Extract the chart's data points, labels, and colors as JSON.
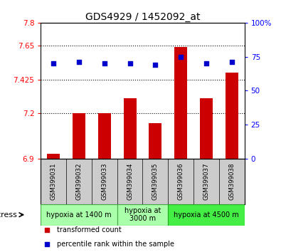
{
  "title": "GDS4929 / 1452092_at",
  "samples": [
    "GSM399031",
    "GSM399032",
    "GSM399033",
    "GSM399034",
    "GSM399035",
    "GSM399036",
    "GSM399037",
    "GSM399038"
  ],
  "bar_values": [
    6.935,
    7.2,
    7.2,
    7.3,
    7.135,
    7.64,
    7.3,
    7.47
  ],
  "dot_values": [
    70,
    71,
    70,
    70,
    69,
    75,
    70,
    71
  ],
  "ylim_left": [
    6.9,
    7.8
  ],
  "ylim_right": [
    0,
    100
  ],
  "yticks_left": [
    6.9,
    7.2,
    7.425,
    7.65,
    7.8
  ],
  "ytick_labels_left": [
    "6.9",
    "7.2",
    "7.425",
    "7.65",
    "7.8"
  ],
  "yticks_right": [
    0,
    25,
    50,
    75,
    100
  ],
  "ytick_labels_right": [
    "0",
    "25",
    "50",
    "75",
    "100%"
  ],
  "bar_color": "#cc0000",
  "dot_color": "#0000cc",
  "bar_bottom": 6.9,
  "group_defs": [
    {
      "start": 0,
      "end": 2,
      "label": "hypoxia at 1400 m",
      "fc": "#aaffaa",
      "ec": "#44aa44"
    },
    {
      "start": 3,
      "end": 4,
      "label": "hypoxia at\n3000 m",
      "fc": "#aaffaa",
      "ec": "#44aa44"
    },
    {
      "start": 5,
      "end": 7,
      "label": "hypoxia at 4500 m",
      "fc": "#44ee44",
      "ec": "#22aa22"
    }
  ],
  "stress_label": "stress",
  "legend_bar_label": "transformed count",
  "legend_dot_label": "percentile rank within the sample",
  "background_color": "#ffffff",
  "sample_box_color": "#cccccc",
  "title_fontsize": 10,
  "tick_fontsize": 7.5,
  "sample_fontsize": 6.2,
  "group_fontsize": 7,
  "legend_fontsize": 7,
  "stress_fontsize": 8,
  "hgrid_vals": [
    7.2,
    7.425,
    7.65
  ]
}
